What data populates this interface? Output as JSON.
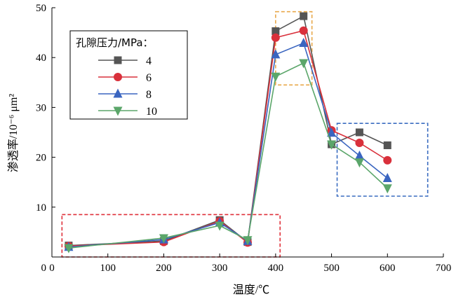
{
  "chart_data": {
    "type": "line",
    "title": "",
    "xlabel": "温度/℃",
    "ylabel": "渗透率/10⁻⁶ μm²",
    "xlim": [
      0,
      700
    ],
    "ylim": [
      0,
      50
    ],
    "x_ticks": [
      0,
      100,
      200,
      300,
      400,
      500,
      600,
      700
    ],
    "y_ticks": [
      10,
      20,
      30,
      40,
      50
    ],
    "grid": false,
    "legend": {
      "title": "孔隙压力/MPa：",
      "position": "top-left"
    },
    "series": [
      {
        "name": "4",
        "color": "#555555",
        "marker": "square",
        "x": [
          30,
          200,
          300,
          350,
          400,
          450,
          500,
          550,
          600
        ],
        "y": [
          2.3,
          3.2,
          7.4,
          3.0,
          45.3,
          48.3,
          22.6,
          25.0,
          22.4
        ]
      },
      {
        "name": "6",
        "color": "#d9303b",
        "marker": "circle",
        "x": [
          30,
          200,
          300,
          350,
          400,
          450,
          500,
          550,
          600
        ],
        "y": [
          2.2,
          3.0,
          7.2,
          2.9,
          44.0,
          45.4,
          25.4,
          22.9,
          19.4
        ]
      },
      {
        "name": "8",
        "color": "#3a65c0",
        "marker": "triangle-up",
        "x": [
          30,
          200,
          300,
          350,
          400,
          450,
          500,
          550,
          600
        ],
        "y": [
          2.0,
          3.5,
          6.9,
          3.2,
          40.6,
          42.9,
          24.9,
          20.3,
          15.8
        ]
      },
      {
        "name": "10",
        "color": "#5ba66a",
        "marker": "triangle-down",
        "x": [
          30,
          200,
          300,
          350,
          400,
          450,
          500,
          550,
          600
        ],
        "y": [
          1.8,
          3.8,
          6.3,
          3.4,
          36.2,
          38.9,
          22.6,
          19.0,
          13.8
        ]
      }
    ],
    "annotations": [
      {
        "type": "dashed-box",
        "color": "#e0303a",
        "x_range": [
          18,
          408
        ],
        "y_range": [
          0,
          8.5
        ]
      },
      {
        "type": "dashed-box",
        "color": "#e8a84a",
        "x_range": [
          400,
          465
        ],
        "y_range": [
          34.5,
          49.2
        ]
      },
      {
        "type": "dashed-box",
        "color": "#3a6cc0",
        "x_range": [
          510,
          672
        ],
        "y_range": [
          12.2,
          26.8
        ]
      }
    ]
  }
}
